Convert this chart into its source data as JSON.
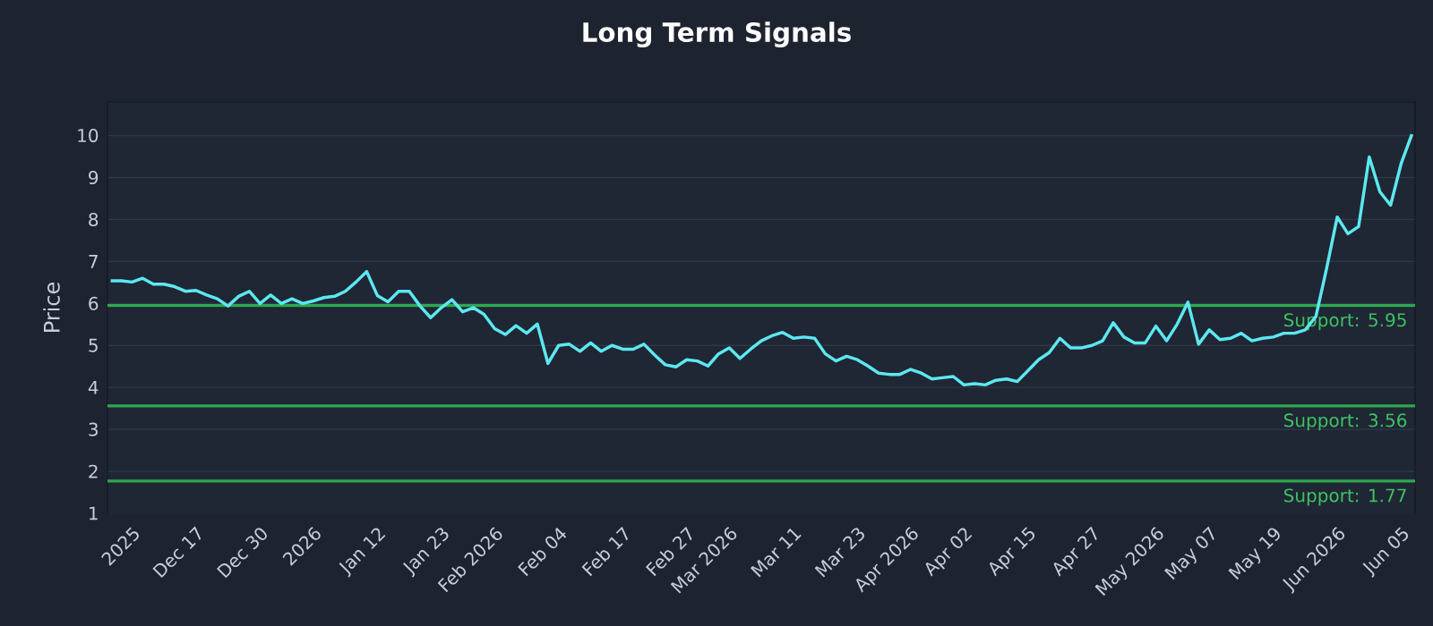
{
  "chart_data": {
    "type": "line",
    "title": "Long Term Signals",
    "ylabel": "Price",
    "categories": [
      null,
      null,
      "2025",
      null,
      null,
      null,
      null,
      null,
      "Dec 17",
      null,
      null,
      null,
      null,
      null,
      "Dec 30",
      null,
      null,
      null,
      null,
      "2026",
      null,
      null,
      null,
      null,
      null,
      "Jan 12",
      null,
      null,
      null,
      null,
      null,
      "Jan 23",
      null,
      null,
      null,
      null,
      "Feb 2026",
      null,
      null,
      null,
      null,
      null,
      "Feb 04",
      null,
      null,
      null,
      null,
      null,
      "Feb 17",
      null,
      null,
      null,
      null,
      null,
      "Feb 27",
      null,
      null,
      null,
      "Mar 2026",
      null,
      null,
      null,
      null,
      null,
      "Mar 11",
      null,
      null,
      null,
      null,
      null,
      "Mar 23",
      null,
      null,
      null,
      null,
      "Apr 2026",
      null,
      null,
      null,
      null,
      "Apr 02",
      null,
      null,
      null,
      null,
      null,
      "Apr 15",
      null,
      null,
      null,
      null,
      null,
      "Apr 27",
      null,
      null,
      null,
      null,
      null,
      "May 2026",
      null,
      null,
      null,
      null,
      "May 07",
      null,
      null,
      null,
      null,
      null,
      "May 19",
      null,
      null,
      null,
      null,
      null,
      "Jun 2026",
      null,
      null,
      null,
      null,
      null,
      "Jun 05",
      null
    ],
    "series": [
      {
        "color": "#5ce8f0",
        "values": [
          6.54,
          6.54,
          6.51,
          6.6,
          6.46,
          6.46,
          6.4,
          6.29,
          6.31,
          6.2,
          6.11,
          5.94,
          6.17,
          6.29,
          6.0,
          6.2,
          6.0,
          6.11,
          6.0,
          6.06,
          6.14,
          6.17,
          6.29,
          6.51,
          6.76,
          6.19,
          6.04,
          6.29,
          6.29,
          5.94,
          5.66,
          5.9,
          6.09,
          5.8,
          5.9,
          5.74,
          5.4,
          5.26,
          5.47,
          5.29,
          5.51,
          4.57,
          5.0,
          5.03,
          4.86,
          5.06,
          4.86,
          5.0,
          4.91,
          4.91,
          5.03,
          4.77,
          4.54,
          4.49,
          4.66,
          4.63,
          4.51,
          4.8,
          4.94,
          4.69,
          4.91,
          5.11,
          5.23,
          5.31,
          5.17,
          5.2,
          5.17,
          4.8,
          4.63,
          4.74,
          4.66,
          4.51,
          4.34,
          4.31,
          4.31,
          4.43,
          4.34,
          4.2,
          4.23,
          4.26,
          4.06,
          4.09,
          4.06,
          4.17,
          4.2,
          4.14,
          4.4,
          4.66,
          4.83,
          5.17,
          4.94,
          4.94,
          5.0,
          5.11,
          5.54,
          5.2,
          5.06,
          5.06,
          5.46,
          5.11,
          5.51,
          6.03,
          5.03,
          5.37,
          5.14,
          5.17,
          5.29,
          5.11,
          5.17,
          5.2,
          5.29,
          5.29,
          5.37,
          5.69,
          6.83,
          8.06,
          7.66,
          7.83,
          9.49,
          8.66,
          8.34,
          9.34,
          10.03
        ]
      }
    ],
    "ylim": [
      1,
      10.8
    ],
    "yticks": [
      1,
      2,
      3,
      4,
      5,
      6,
      7,
      8,
      9,
      10
    ],
    "grid": "y",
    "marker": "none",
    "line_style": "solid",
    "ref_lines": [
      {
        "axis": "y",
        "value": 5.95,
        "label": "Support: 5.95",
        "color": "#2ea84f"
      },
      {
        "axis": "y",
        "value": 3.56,
        "label": "Support: 3.56",
        "color": "#2ea84f"
      },
      {
        "axis": "y",
        "value": 1.77,
        "label": "Support: 1.77",
        "color": "#2ea84f"
      }
    ]
  }
}
